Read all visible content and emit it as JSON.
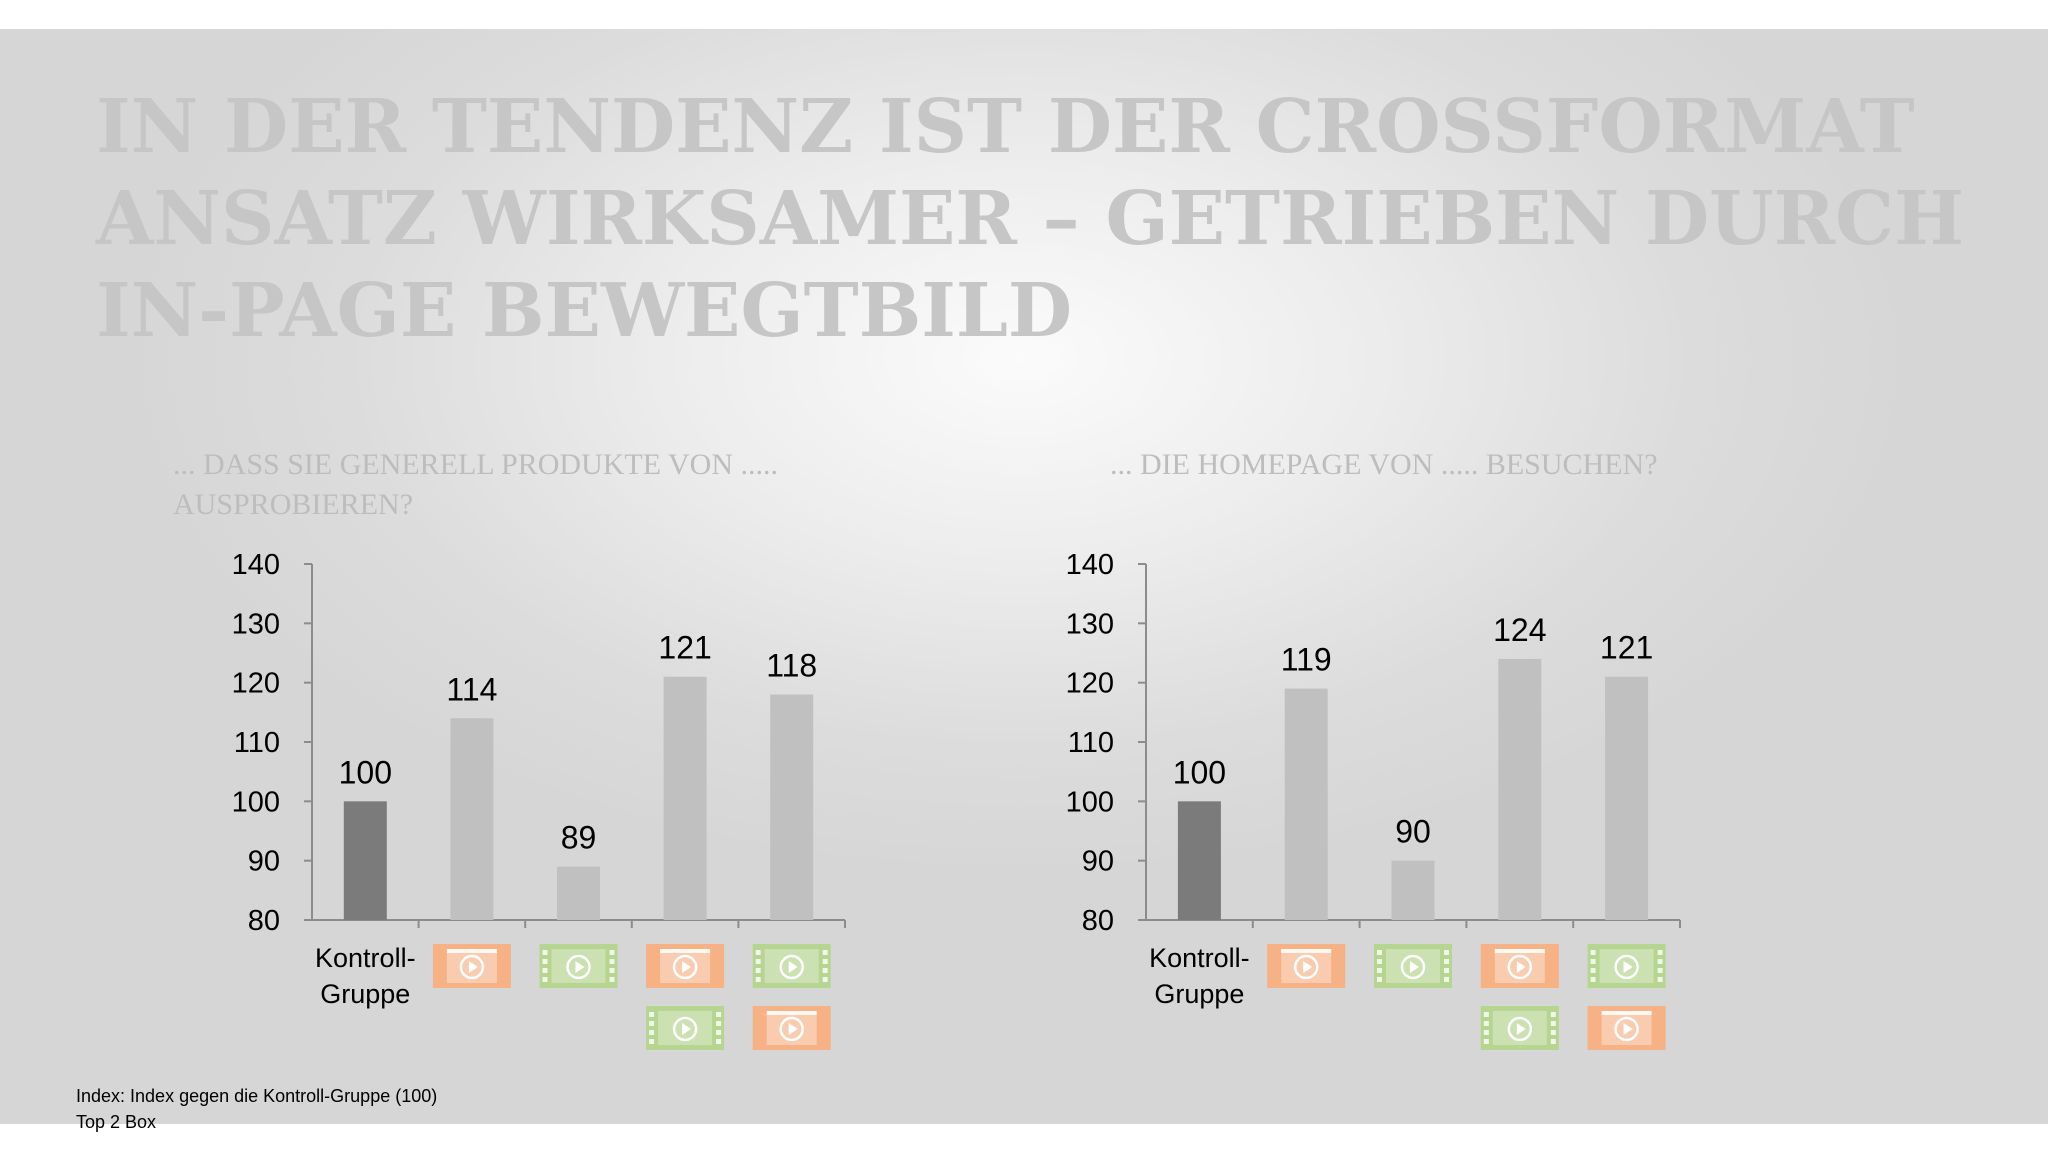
{
  "slide": {
    "title_lines": [
      "IN DER TENDENZ IST DER CROSSFORMAT",
      "ANSATZ WIRKSAMER – GETRIEBEN DURCH",
      "IN-PAGE BEWEGTBILD"
    ]
  },
  "questions": {
    "left": "... DASS SIE GENERELL PRODUKTE VON ..... AUSPROBIEREN?",
    "right": "... DIE HOMEPAGE VON ..... BESUCHEN?"
  },
  "footnote": {
    "lines": [
      "Index: Index gegen die Kontroll-Gruppe (100)",
      "Top 2 Box"
    ]
  },
  "colors": {
    "control_bar": "#7b7b7b",
    "bar": "#c0c0c0",
    "icon_orange": "#f6b184",
    "icon_green": "#b5d590",
    "axis": "#8c8c8c"
  },
  "chart_data": [
    {
      "type": "bar",
      "categories": [
        "Kontroll-Gruppe",
        "",
        "",
        "",
        ""
      ],
      "category_icons": [
        [],
        [
          "display-ad-video-icon"
        ],
        [
          "instream-video-icon"
        ],
        [
          "display-ad-video-icon",
          "instream-video-icon"
        ],
        [
          "instream-video-icon",
          "display-ad-video-icon"
        ]
      ],
      "values": [
        100,
        114,
        89,
        121,
        118
      ],
      "data_labels": [
        "100",
        "114",
        "89",
        "121",
        "118"
      ],
      "ylim": [
        80,
        140
      ],
      "yticks": [
        80,
        90,
        100,
        110,
        120,
        130,
        140
      ],
      "highlight_index": 0,
      "grid": false,
      "legend": "none"
    },
    {
      "type": "bar",
      "categories": [
        "Kontroll-Gruppe",
        "",
        "",
        "",
        ""
      ],
      "category_icons": [
        [],
        [
          "display-ad-video-icon"
        ],
        [
          "instream-video-icon"
        ],
        [
          "display-ad-video-icon",
          "instream-video-icon"
        ],
        [
          "instream-video-icon",
          "display-ad-video-icon"
        ]
      ],
      "values": [
        100,
        119,
        90,
        124,
        121
      ],
      "data_labels": [
        "100",
        "119",
        "90",
        "124",
        "121"
      ],
      "ylim": [
        80,
        140
      ],
      "yticks": [
        80,
        90,
        100,
        110,
        120,
        130,
        140
      ],
      "highlight_index": 0,
      "grid": false,
      "legend": "none"
    }
  ]
}
